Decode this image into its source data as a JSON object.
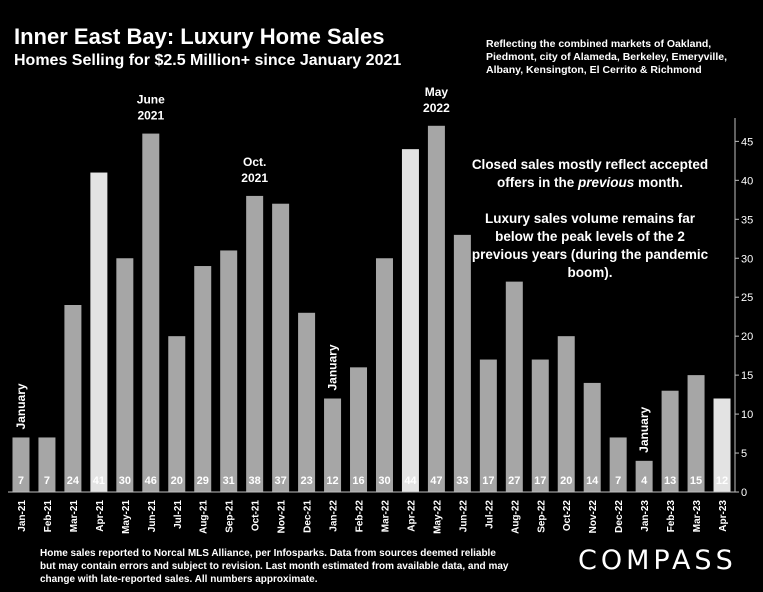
{
  "header": {
    "title": "Inner East Bay: Luxury Home Sales",
    "subtitle": "Homes Selling for $2.5 Million+ since January 2021",
    "note": "Reflecting the combined markets of Oakland, Piedmont, city of Alameda, Berkeley, Emeryville, Albany, Kensington, El Cerrito & Richmond"
  },
  "callouts": {
    "line1": "Closed sales mostly reflect accepted offers in the ",
    "italic": "previous",
    "line1_end": " month.",
    "line2": "Luxury sales volume remains far below the peak levels of the 2 previous years (during the pandemic boom)."
  },
  "footer": {
    "text": "Home sales reported to Norcal MLS Alliance, per Infosparks. Data from sources deemed reliable but may contain errors and subject to revision.  Last month estimated from available data, and may change with late-reported sales. All numbers approximate."
  },
  "logo": {
    "text": "COMPASS"
  },
  "colors": {
    "bar": "#a6a6a6",
    "bar_highlight": "#e3e3e3",
    "background": "#000000",
    "text": "#ffffff"
  },
  "chart_data": {
    "type": "bar",
    "categories": [
      "Jan-21",
      "Feb-21",
      "Mar-21",
      "Apr-21",
      "May-21",
      "Jun-21",
      "Jul-21",
      "Aug-21",
      "Sep-21",
      "Oct-21",
      "Nov-21",
      "Dec-21",
      "Jan-22",
      "Feb-22",
      "Mar-22",
      "Apr-22",
      "May-22",
      "Jun-22",
      "Jul-22",
      "Aug-22",
      "Sep-22",
      "Oct-22",
      "Nov-22",
      "Dec-22",
      "Jan-23",
      "Feb-23",
      "Mar-23",
      "Apr-23"
    ],
    "values": [
      7,
      7,
      24,
      41,
      30,
      46,
      20,
      29,
      31,
      38,
      37,
      23,
      12,
      16,
      30,
      44,
      47,
      33,
      17,
      27,
      17,
      20,
      14,
      7,
      4,
      13,
      15,
      12
    ],
    "highlighted": [
      "Apr-21",
      "Apr-22",
      "Apr-23"
    ],
    "ylim": [
      0,
      48
    ],
    "yticks": [
      0,
      5,
      10,
      15,
      20,
      25,
      30,
      35,
      40,
      45
    ],
    "y_axis_side": "right",
    "grid": false,
    "annotations": [
      {
        "category": "Jun-21",
        "lines": [
          "June",
          "2021"
        ]
      },
      {
        "category": "Oct-21",
        "lines": [
          "Oct.",
          "2021"
        ]
      },
      {
        "category": "May-22",
        "lines": [
          "May",
          "2022"
        ]
      },
      {
        "category": "Jan-21",
        "text": "January",
        "vertical": true
      },
      {
        "category": "Jan-22",
        "text": "January",
        "vertical": true
      },
      {
        "category": "Jan-23",
        "text": "January",
        "vertical": true
      }
    ]
  }
}
